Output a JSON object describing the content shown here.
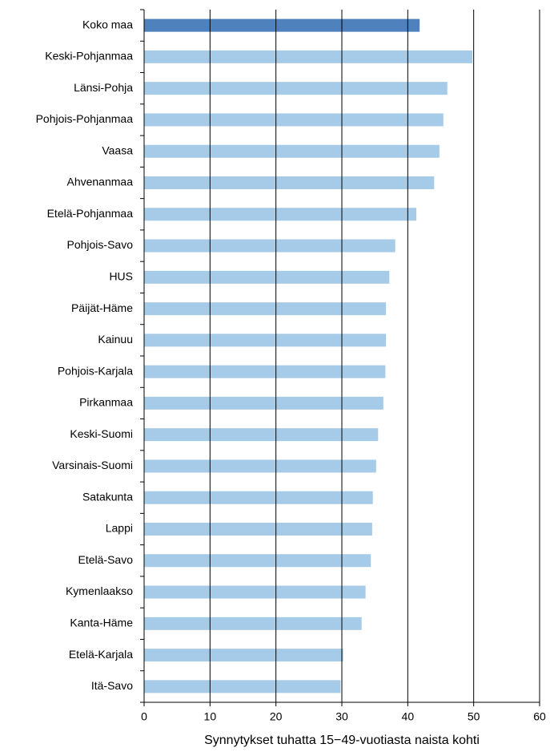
{
  "chart_data": {
    "type": "barh",
    "x_label": "Synnytykset tuhatta 15−49-vuotiasta naista kohti",
    "categories": [
      "Koko maa",
      "Keski-Pohjanmaa",
      "Länsi-Pohja",
      "Pohjois-Pohjanmaa",
      "Vaasa",
      "Ahvenanmaa",
      "Etelä-Pohjanmaa",
      "Pohjois-Savo",
      "HUS",
      "Päijät-Häme",
      "Kainuu",
      "Pohjois-Karjala",
      "Pirkanmaa",
      "Keski-Suomi",
      "Varsinais-Suomi",
      "Satakunta",
      "Lappi",
      "Etelä-Savo",
      "Kymenlaakso",
      "Kanta-Häme",
      "Etelä-Karjala",
      "Itä-Savo"
    ],
    "values": [
      41.8,
      49.8,
      46.0,
      45.4,
      44.8,
      44.0,
      41.3,
      38.1,
      37.2,
      36.7,
      36.7,
      36.6,
      36.3,
      35.5,
      35.2,
      34.7,
      34.6,
      34.4,
      33.6,
      33.0,
      30.2,
      29.8
    ],
    "colors": [
      "#4f81bd",
      "#a6cbe8",
      "#a6cbe8",
      "#a6cbe8",
      "#a6cbe8",
      "#a6cbe8",
      "#a6cbe8",
      "#a6cbe8",
      "#a6cbe8",
      "#a6cbe8",
      "#a6cbe8",
      "#a6cbe8",
      "#a6cbe8",
      "#a6cbe8",
      "#a6cbe8",
      "#a6cbe8",
      "#a6cbe8",
      "#a6cbe8",
      "#a6cbe8",
      "#a6cbe8",
      "#a6cbe8",
      "#a6cbe8"
    ],
    "xlim": [
      0,
      60
    ],
    "xticks": [
      0,
      10,
      20,
      30,
      40,
      50,
      60
    ],
    "grid": true
  }
}
